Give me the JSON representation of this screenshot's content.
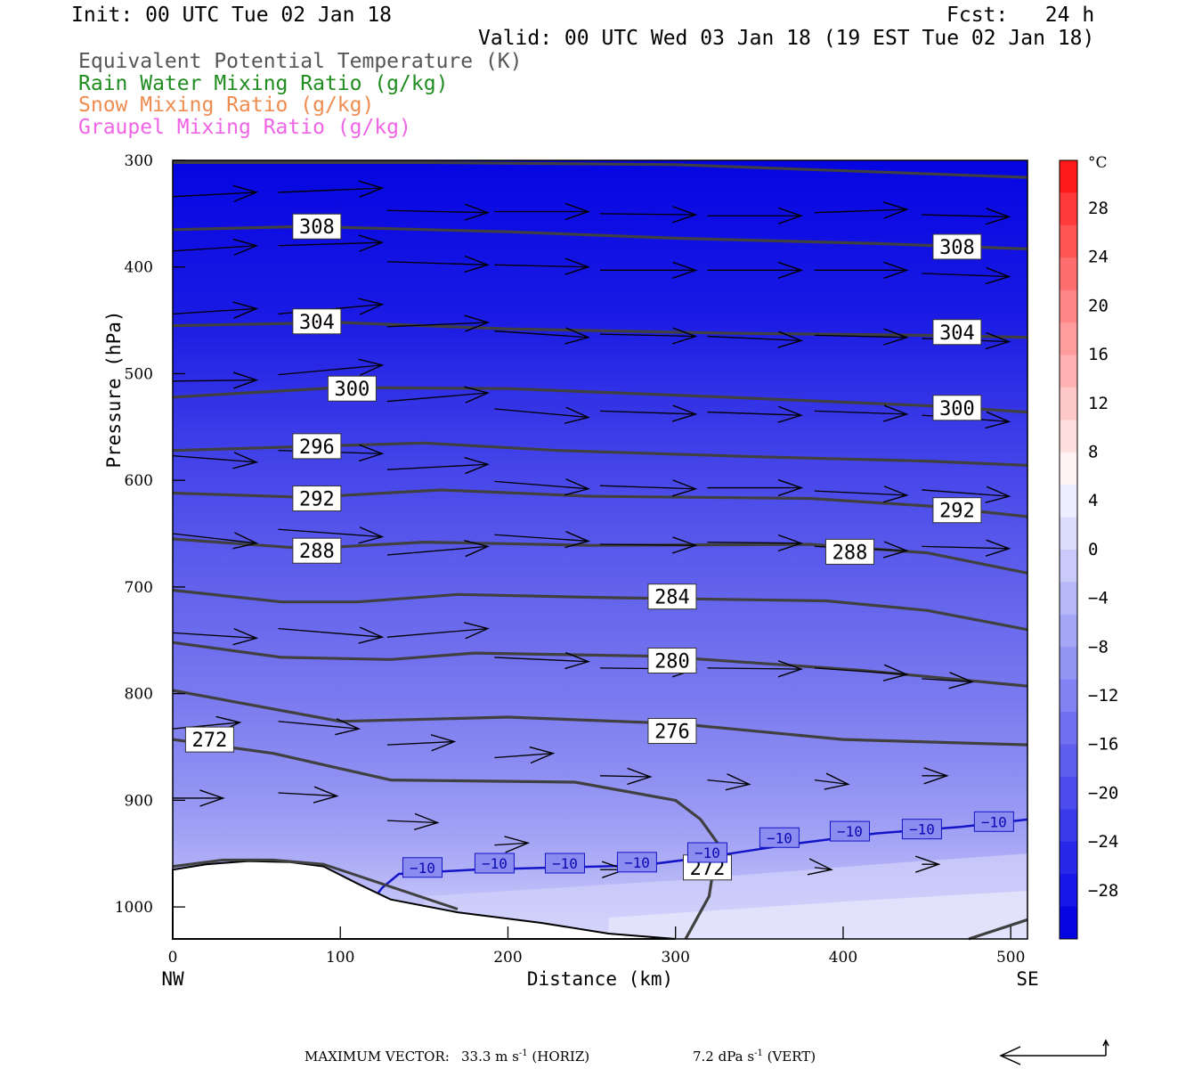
{
  "header": {
    "init": "Init: 00 UTC Tue 02 Jan 18",
    "fcst": "Fcst:   24 h",
    "valid": "Valid: 00 UTC Wed 03 Jan 18 (19 EST Tue 02 Jan 18)",
    "legend": [
      {
        "text": "Equivalent Potential Temperature (K)",
        "color": "#555555"
      },
      {
        "text": "Rain Water Mixing Ratio (g/kg)",
        "color": "#1e8c1e"
      },
      {
        "text": "Snow Mixing Ratio (g/kg)",
        "color": "#f08c50"
      },
      {
        "text": "Graupel Mixing Ratio (g/kg)",
        "color": "#f064e6"
      }
    ]
  },
  "footer": {
    "max_vector_label": "MAXIMUM VECTOR:",
    "horiz": "33.3 m s",
    "horiz_unit": "(HORIZ)",
    "vert": "7.2 dPa s",
    "vert_unit": "(VERT)",
    "exp": "-1"
  },
  "chart_data": {
    "type": "contour",
    "xlabel": "Distance (km)",
    "ylabel": "Pressure (hPa)",
    "xlim": [
      0,
      510
    ],
    "ylim": [
      1030,
      300
    ],
    "x_ticks": [
      0,
      100,
      200,
      300,
      400,
      500
    ],
    "y_ticks": [
      300,
      400,
      500,
      600,
      700,
      800,
      900,
      1000
    ],
    "x_end_labels": {
      "left": "NW",
      "right": "SE"
    },
    "colorbar": {
      "unit": "°C",
      "labels": [
        28,
        24,
        20,
        16,
        12,
        8,
        4,
        0,
        -4,
        -8,
        -12,
        -16,
        -20,
        -24,
        -28
      ],
      "colors": [
        "#ff1a1a",
        "#ff3a3a",
        "#ff5555",
        "#ff6e6e",
        "#ff8686",
        "#ff9c9c",
        "#ffb2b2",
        "#ffc8c8",
        "#ffdede",
        "#fff2f2",
        "#eeeefe",
        "#dcdcfc",
        "#cacafa",
        "#b8b8f8",
        "#a6a6f6",
        "#9494f4",
        "#8282f2",
        "#7070f0",
        "#5e5eee",
        "#4c4cec",
        "#3a3aea",
        "#2828e8",
        "#1616e6",
        "#0505e2"
      ]
    },
    "theta_e_labels": [
      {
        "value": 308,
        "x": 86,
        "p": 362
      },
      {
        "value": 308,
        "x": 468,
        "p": 381
      },
      {
        "value": 304,
        "x": 86,
        "p": 451
      },
      {
        "value": 304,
        "x": 468,
        "p": 461
      },
      {
        "value": 300,
        "x": 107,
        "p": 514
      },
      {
        "value": 300,
        "x": 468,
        "p": 532
      },
      {
        "value": 296,
        "x": 86,
        "p": 568
      },
      {
        "value": 292,
        "x": 86,
        "p": 617
      },
      {
        "value": 292,
        "x": 468,
        "p": 628
      },
      {
        "value": 288,
        "x": 86,
        "p": 666
      },
      {
        "value": 288,
        "x": 404,
        "p": 667
      },
      {
        "value": 284,
        "x": 298,
        "p": 709
      },
      {
        "value": 280,
        "x": 298,
        "p": 769
      },
      {
        "value": 276,
        "x": 298,
        "p": 835
      },
      {
        "value": 272,
        "x": 22,
        "p": 843
      },
      {
        "value": 272,
        "x": 319,
        "p": 963
      }
    ],
    "isotherm_labels": [
      {
        "value": -10,
        "x": 149,
        "p": 963
      },
      {
        "value": -10,
        "x": 192,
        "p": 959
      },
      {
        "value": -10,
        "x": 234,
        "p": 959
      },
      {
        "value": -10,
        "x": 277,
        "p": 958
      },
      {
        "value": -10,
        "x": 319,
        "p": 949
      },
      {
        "value": -10,
        "x": 362,
        "p": 935
      },
      {
        "value": -10,
        "x": 404,
        "p": 929
      },
      {
        "value": -10,
        "x": 447,
        "p": 927
      },
      {
        "value": -10,
        "x": 490,
        "p": 920
      }
    ]
  }
}
